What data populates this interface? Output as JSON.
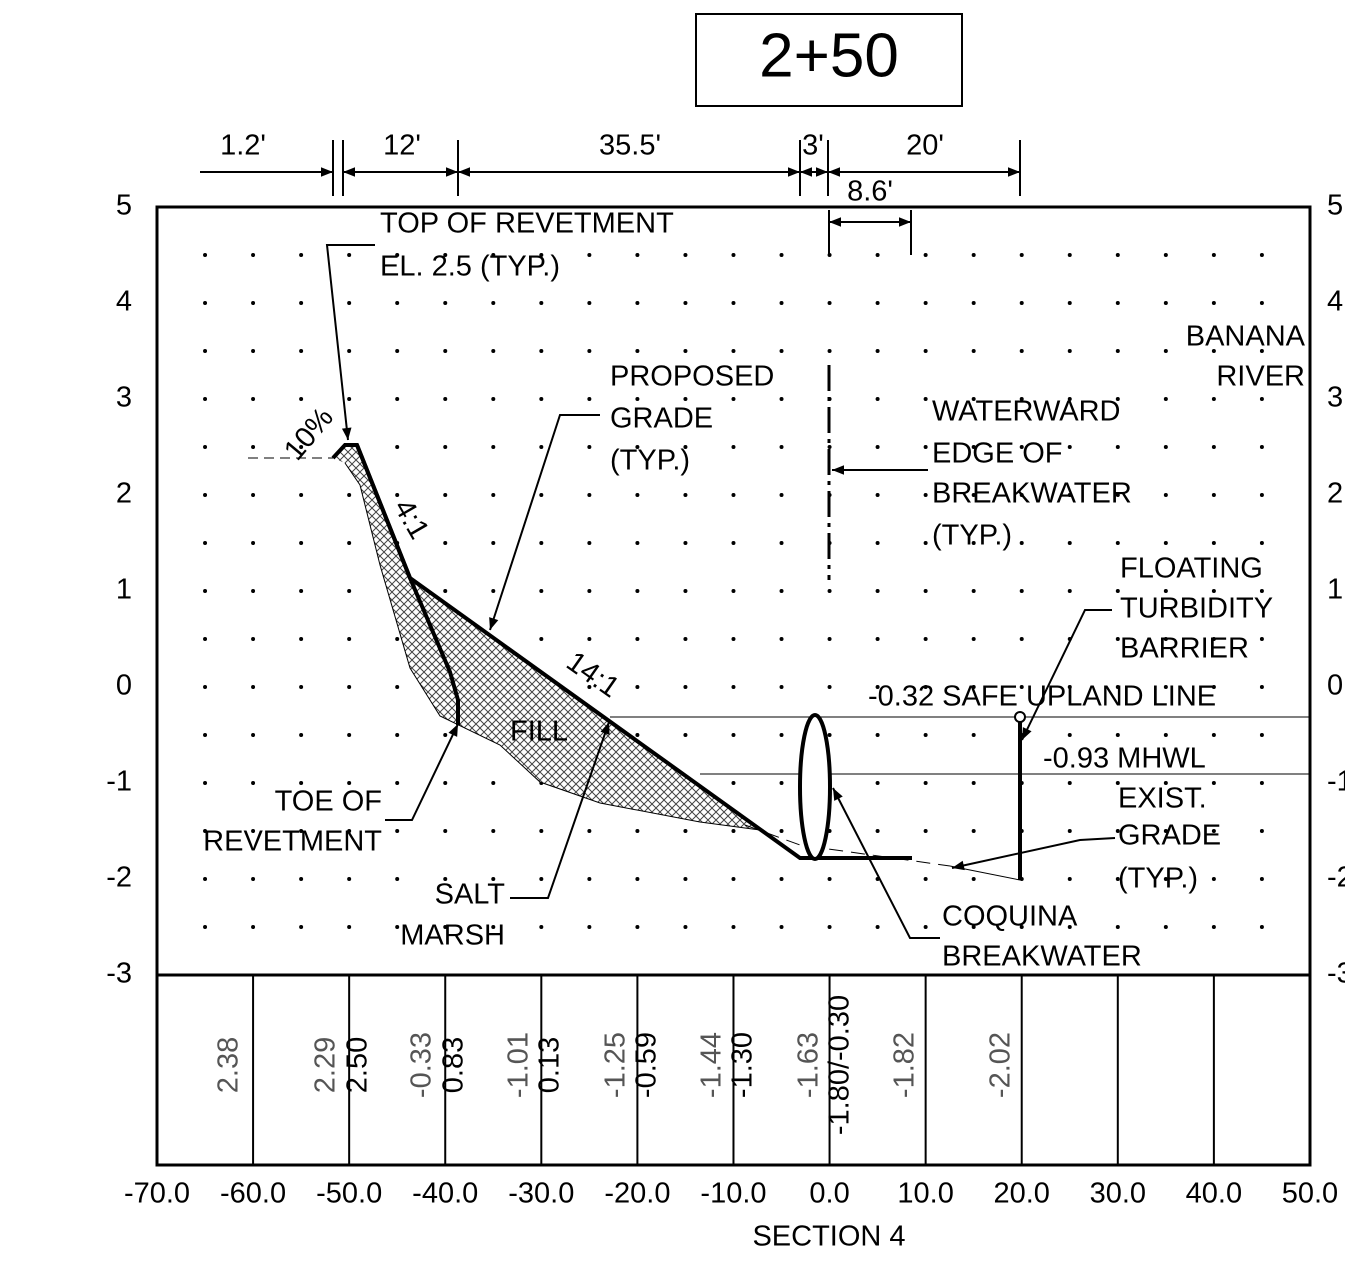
{
  "title": "2+50",
  "dimensions": [
    "1.2'",
    "12'",
    "35.5'",
    "3'",
    "20'",
    "8.6'"
  ],
  "y_axis": [
    "5",
    "4",
    "3",
    "2",
    "1",
    "0",
    "-1",
    "-2",
    "-3"
  ],
  "x_axis": [
    "-70.0",
    "-60.0",
    "-50.0",
    "-40.0",
    "-30.0",
    "-20.0",
    "-10.0",
    "0.0",
    "10.0",
    "20.0",
    "30.0",
    "40.0",
    "50.0"
  ],
  "x_axis_title": "SECTION 4",
  "slopes": [
    "10%",
    "4:1",
    "14:1"
  ],
  "annotations": {
    "top_of_revetment": [
      "TOP OF REVETMENT",
      "EL. 2.5 (TYP.)"
    ],
    "proposed_grade": [
      "PROPOSED",
      "GRADE",
      "(TYP.)"
    ],
    "waterward_edge": [
      "WATERWARD",
      "EDGE OF",
      "BREAKWATER",
      "(TYP.)"
    ],
    "river": [
      "BANANA",
      "RIVER"
    ],
    "turbidity_barrier": [
      "FLOATING",
      "TURBIDITY",
      "BARRIER"
    ],
    "safe_upland_line": "-0.32 SAFE UPLAND LINE",
    "mhwl": "-0.93 MHWL",
    "existing_grade": [
      "EXIST.",
      "GRADE",
      "(TYP.)"
    ],
    "toe_of_revetment": [
      "TOE OF",
      "REVETMENT"
    ],
    "fill": "FILL",
    "salt_marsh": [
      "SALT",
      "MARSH"
    ],
    "coquina_breakwater": [
      "COQUINA",
      "BREAKWATER"
    ]
  },
  "existing_elevations": [
    "2.38",
    "2.29",
    "-0.33",
    "-1.01",
    "-1.25",
    "-1.44",
    "-1.63",
    "-1.82",
    "-2.02"
  ],
  "proposed_elevations": [
    "2.50",
    "0.83",
    "0.13",
    "-0.59",
    "-1.30",
    "-1.80/-0.30"
  ]
}
